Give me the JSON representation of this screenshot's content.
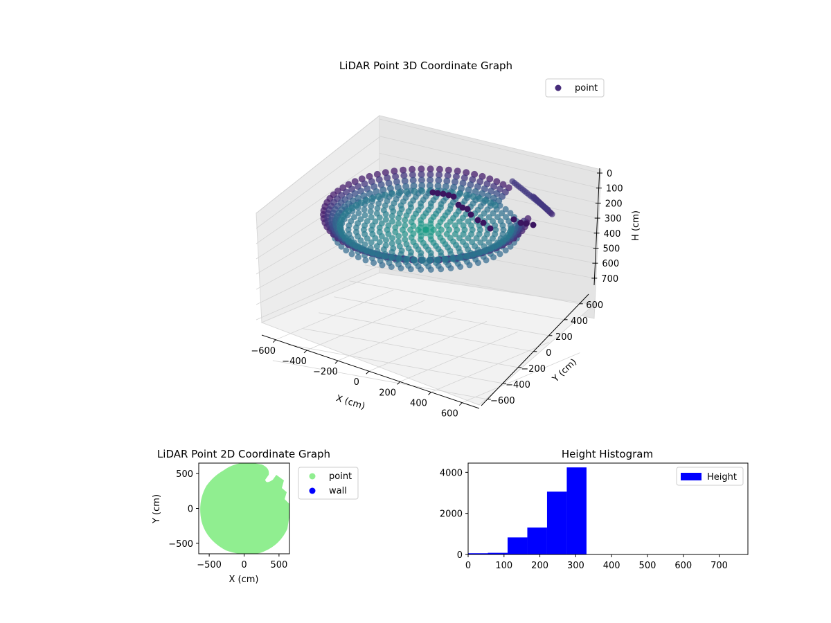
{
  "chart_data": [
    {
      "type": "scatter",
      "title": "LiDAR Point 3D Coordinate Graph",
      "xlabel": "X (cm)",
      "ylabel": "Y (cm)",
      "zlabel": "H (cm)",
      "xlim": [
        -650,
        650
      ],
      "ylim": [
        -650,
        650
      ],
      "zlim": [
        0,
        760
      ],
      "z_inverted": true,
      "xticks": [
        "−600",
        "−400",
        "−200",
        "0",
        "200",
        "400",
        "600"
      ],
      "yticks": [
        "−600",
        "−400",
        "−200",
        "0",
        "200",
        "400",
        "600"
      ],
      "zticks": [
        "0",
        "100",
        "200",
        "300",
        "400",
        "500",
        "600",
        "700"
      ],
      "colormap": "viridis",
      "grid": true,
      "legend": {
        "position": "top-right",
        "entries": [
          "point"
        ]
      },
      "series": [
        {
          "name": "point",
          "color": "#472c7a",
          "description_points_sample": [
            {
              "x": 0,
              "y": 0,
              "z": 290
            },
            {
              "x": -300,
              "y": 300,
              "z": 240
            },
            {
              "x": 300,
              "y": -300,
              "z": 260
            },
            {
              "x": -500,
              "y": 0,
              "z": 200
            },
            {
              "x": 500,
              "y": 0,
              "z": 210
            },
            {
              "x": 0,
              "y": 550,
              "z": 180
            },
            {
              "x": 0,
              "y": -550,
              "z": 230
            },
            {
              "x": 400,
              "y": 400,
              "z": 150
            },
            {
              "x": -400,
              "y": -400,
              "z": 220
            }
          ]
        }
      ]
    },
    {
      "type": "scatter",
      "title": "LiDAR Point 2D Coordinate Graph",
      "xlabel": "X (cm)",
      "ylabel": "Y (cm)",
      "xlim": [
        -650,
        650
      ],
      "ylim": [
        -650,
        650
      ],
      "xticks": [
        "−500",
        "0",
        "500"
      ],
      "yticks": [
        "−500",
        "0",
        "500"
      ],
      "legend": {
        "position": "right",
        "entries": [
          "point",
          "wall"
        ]
      },
      "series": [
        {
          "name": "point",
          "color": "#90ee90",
          "shape": "disc of radius ~650 cm with notches near the upper-right edge"
        },
        {
          "name": "wall",
          "color": "#0000ff",
          "values": []
        }
      ]
    },
    {
      "type": "bar",
      "title": "Height Histogram",
      "xlabel": "",
      "ylabel": "",
      "bin_edges": [
        0,
        55,
        110,
        165,
        220,
        275,
        330
      ],
      "values": [
        60,
        80,
        830,
        1310,
        3060,
        4240
      ],
      "xlim": [
        0,
        780
      ],
      "ylim": [
        0,
        4450
      ],
      "xticks": [
        "0",
        "100",
        "200",
        "300",
        "400",
        "500",
        "600",
        "700"
      ],
      "yticks": [
        "0",
        "2000",
        "4000"
      ],
      "legend": {
        "position": "top-right",
        "entries": [
          "Height"
        ]
      },
      "series": [
        {
          "name": "Height",
          "color": "#0000ff"
        }
      ]
    }
  ]
}
